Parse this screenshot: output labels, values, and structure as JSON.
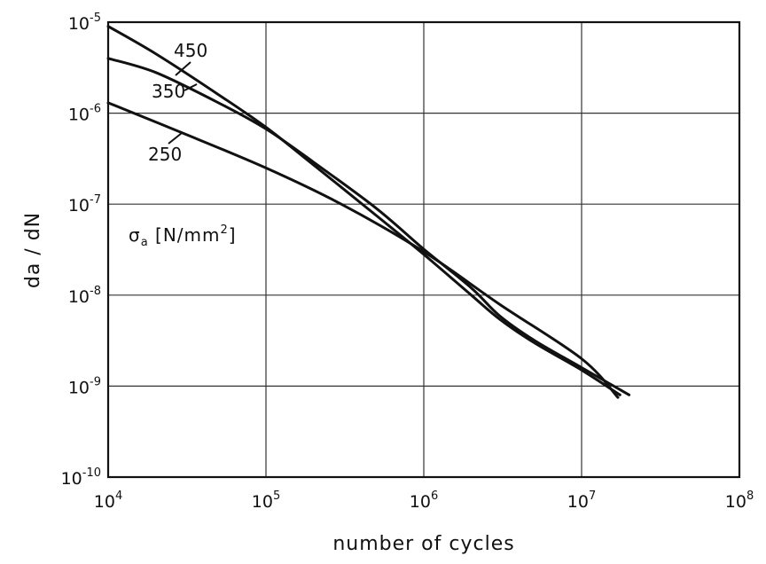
{
  "chart_data": {
    "type": "line",
    "xlabel": "number of cycles",
    "ylabel": "da / dN",
    "x_scale": "log",
    "y_scale": "log",
    "xlim": [
      10000,
      100000000
    ],
    "ylim": [
      1e-10,
      1e-05
    ],
    "grid": true,
    "x_ticks": [
      {
        "value": 10000,
        "base": "10",
        "exp": "4"
      },
      {
        "value": 100000,
        "base": "10",
        "exp": "5"
      },
      {
        "value": 1000000,
        "base": "10",
        "exp": "6"
      },
      {
        "value": 10000000,
        "base": "10",
        "exp": "7"
      },
      {
        "value": 100000000,
        "base": "10",
        "exp": "8"
      }
    ],
    "y_ticks": [
      {
        "value": 1e-05,
        "base": "10",
        "exp": "-5"
      },
      {
        "value": 1e-06,
        "base": "10",
        "exp": "-6"
      },
      {
        "value": 1e-07,
        "base": "10",
        "exp": "-7"
      },
      {
        "value": 1e-08,
        "base": "10",
        "exp": "-8"
      },
      {
        "value": 1e-09,
        "base": "10",
        "exp": "-9"
      },
      {
        "value": 1e-10,
        "base": "10",
        "exp": "-10"
      }
    ],
    "annotation": {
      "symbol": "σ",
      "subscript": "a",
      "text": " [N/mm",
      "sup": "2",
      "close": "]"
    },
    "series": [
      {
        "name": "450",
        "color": "#111111",
        "points": [
          [
            10000,
            9e-06
          ],
          [
            20000,
            4.5e-06
          ],
          [
            50000,
            1.6e-06
          ],
          [
            100000,
            7e-07
          ],
          [
            200000,
            2.7e-07
          ],
          [
            500000,
            7.5e-08
          ],
          [
            1000000,
            2.8e-08
          ],
          [
            2000000,
            1e-08
          ],
          [
            3000000,
            5.5e-09
          ],
          [
            5000000,
            3e-09
          ],
          [
            10000000,
            1.5e-09
          ],
          [
            17500000,
            8e-10
          ]
        ]
      },
      {
        "name": "350",
        "color": "#111111",
        "points": [
          [
            10000,
            4e-06
          ],
          [
            20000,
            2.8e-06
          ],
          [
            50000,
            1.3e-06
          ],
          [
            100000,
            6.7e-07
          ],
          [
            200000,
            2.9e-07
          ],
          [
            500000,
            9e-08
          ],
          [
            1000000,
            3.2e-08
          ],
          [
            2000000,
            1.2e-08
          ],
          [
            3000000,
            6e-09
          ],
          [
            5000000,
            3.2e-09
          ],
          [
            10000000,
            1.6e-09
          ],
          [
            20000000,
            8e-10
          ]
        ]
      },
      {
        "name": "250",
        "color": "#111111",
        "points": [
          [
            10000,
            1.3e-06
          ],
          [
            30000,
            6e-07
          ],
          [
            100000,
            2.5e-07
          ],
          [
            300000,
            1e-07
          ],
          [
            1000000,
            3e-08
          ],
          [
            3000000,
            8e-09
          ],
          [
            10000000,
            2e-09
          ],
          [
            17000000,
            7.5e-10
          ]
        ]
      }
    ]
  }
}
